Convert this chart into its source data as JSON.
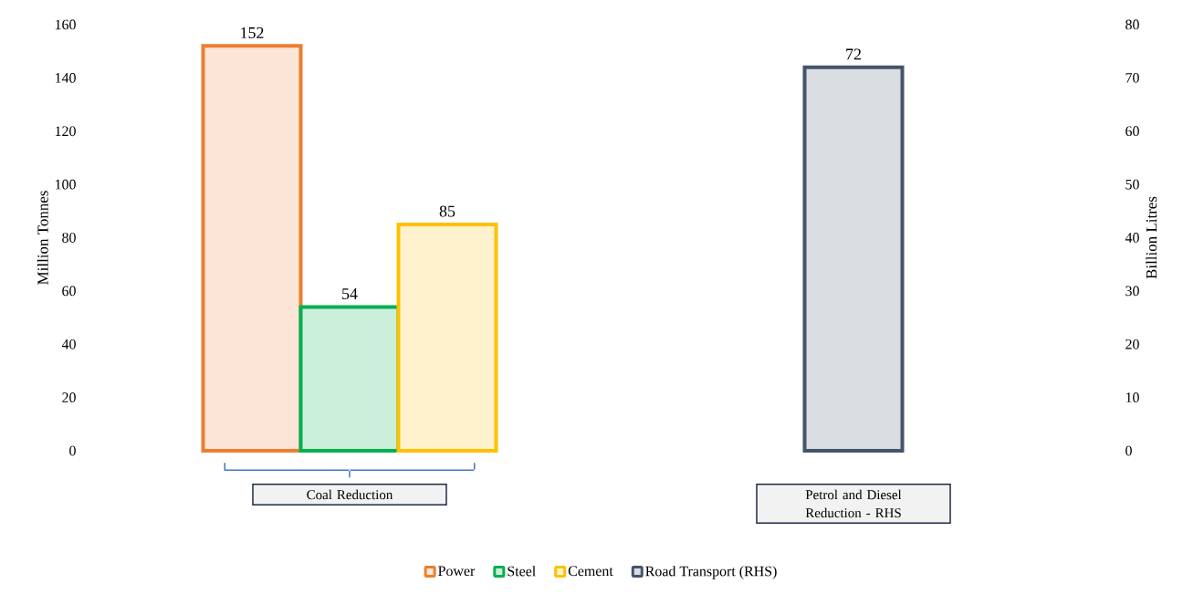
{
  "chart_data": {
    "type": "bar",
    "categories": [
      "Coal Reduction",
      "Petrol and Diesel Reduction - RHS"
    ],
    "series": [
      {
        "name": "Power",
        "color": "#ed7d31",
        "values": [
          152,
          null
        ]
      },
      {
        "name": "Steel",
        "color": "#00b050",
        "values": [
          54,
          null
        ]
      },
      {
        "name": "Cement",
        "color": "#ffc000",
        "values": [
          85,
          null
        ]
      },
      {
        "name": "Road Transport (RHS)",
        "color": "#44546a",
        "values": [
          null,
          72
        ],
        "axis": "y2"
      }
    ],
    "ylabel": "Million Tonnes",
    "y2label": "Billion Litres",
    "ylim": [
      0,
      160
    ],
    "yticks": [
      0,
      20,
      40,
      60,
      80,
      100,
      120,
      140,
      160
    ],
    "y2lim": [
      0,
      80
    ],
    "y2ticks": [
      0,
      10,
      20,
      30,
      40,
      50,
      60,
      70,
      80
    ],
    "data_labels": true,
    "legend": "bottom",
    "grid": false
  }
}
